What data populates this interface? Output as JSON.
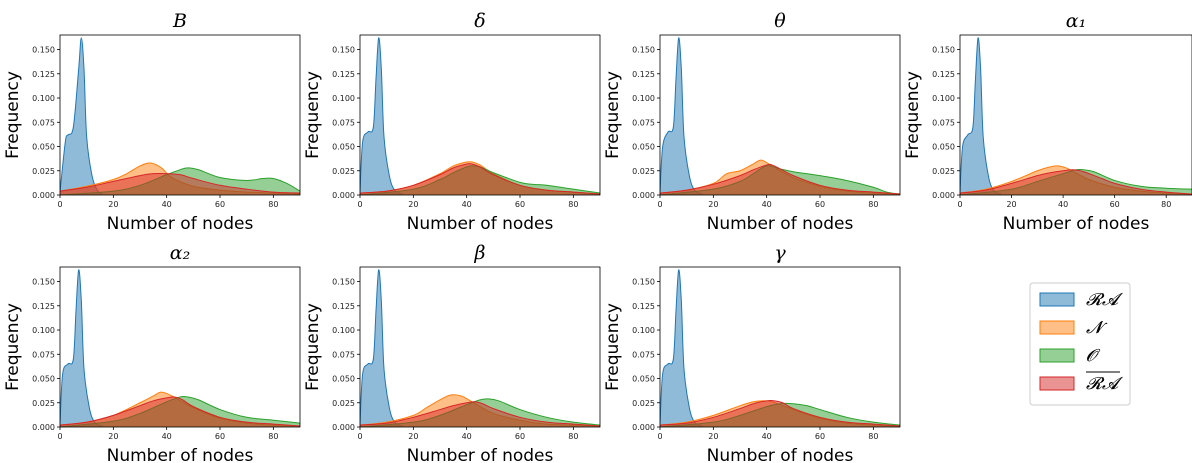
{
  "chart_data": {
    "type": "area",
    "common": {
      "xlabel": "Number of nodes",
      "ylabel": "Frequency",
      "xlim": [
        0,
        90
      ],
      "ylim": [
        0,
        0.165
      ],
      "xticks": [
        0,
        20,
        40,
        60,
        80
      ],
      "yticks": [
        0.0,
        0.025,
        0.05,
        0.075,
        0.1,
        0.125,
        0.15
      ],
      "ytick_labels": [
        "0.000",
        "0.025",
        "0.050",
        "0.075",
        "0.100",
        "0.125",
        "0.150"
      ],
      "grid": false
    },
    "legend": {
      "placement": "right",
      "entries": [
        {
          "label": "𝓡𝓐",
          "color": "#1f77b4"
        },
        {
          "label": "𝓝",
          "color": "#ff7f0e"
        },
        {
          "label": "𝓞",
          "color": "#2ca02c"
        },
        {
          "label": "RA-bar",
          "display": "𝓡𝓐",
          "overline": true,
          "color": "#d62728"
        }
      ]
    },
    "panels": [
      {
        "title": "B",
        "series": [
          {
            "name": "𝓡𝓐",
            "x": [
              0,
              2,
              3,
              5,
              7,
              8,
              9,
              10,
              12,
              14,
              16
            ],
            "y": [
              0.003,
              0.055,
              0.062,
              0.07,
              0.13,
              0.162,
              0.13,
              0.06,
              0.02,
              0.005,
              0.001
            ]
          },
          {
            "name": "𝓝",
            "x": [
              0,
              10,
              20,
              25,
              30,
              34,
              38,
              42,
              50,
              60,
              70,
              80,
              90
            ],
            "y": [
              0.004,
              0.009,
              0.016,
              0.022,
              0.03,
              0.033,
              0.028,
              0.018,
              0.009,
              0.005,
              0.003,
              0.002,
              0.001
            ]
          },
          {
            "name": "𝓞",
            "x": [
              0,
              20,
              30,
              40,
              45,
              48,
              52,
              60,
              70,
              76,
              80,
              85,
              90
            ],
            "y": [
              0.0,
              0.004,
              0.01,
              0.021,
              0.026,
              0.028,
              0.026,
              0.018,
              0.015,
              0.017,
              0.017,
              0.012,
              0.004
            ]
          },
          {
            "name": "RA-bar",
            "x": [
              0,
              10,
              20,
              30,
              35,
              40,
              45,
              50,
              60,
              70,
              80,
              90
            ],
            "y": [
              0.004,
              0.008,
              0.014,
              0.02,
              0.022,
              0.022,
              0.021,
              0.017,
              0.01,
              0.006,
              0.003,
              0.002
            ]
          }
        ]
      },
      {
        "title": "δ",
        "series": [
          {
            "name": "𝓡𝓐",
            "x": [
              0,
              1,
              3,
              5,
              6,
              7,
              8,
              9,
              11,
              13,
              16
            ],
            "y": [
              0.003,
              0.055,
              0.065,
              0.07,
              0.12,
              0.162,
              0.13,
              0.06,
              0.02,
              0.005,
              0.001
            ]
          },
          {
            "name": "𝓝",
            "x": [
              0,
              10,
              20,
              30,
              35,
              40,
              42,
              45,
              50,
              60,
              70,
              80,
              90
            ],
            "y": [
              0.002,
              0.004,
              0.01,
              0.022,
              0.03,
              0.034,
              0.034,
              0.031,
              0.022,
              0.01,
              0.005,
              0.003,
              0.001
            ]
          },
          {
            "name": "𝓞",
            "x": [
              0,
              20,
              30,
              35,
              40,
              42,
              45,
              50,
              60,
              65,
              70,
              80,
              90
            ],
            "y": [
              0.0,
              0.006,
              0.016,
              0.023,
              0.029,
              0.03,
              0.029,
              0.023,
              0.013,
              0.011,
              0.01,
              0.006,
              0.002
            ]
          },
          {
            "name": "RA-bar",
            "x": [
              0,
              10,
              20,
              30,
              35,
              40,
              42,
              45,
              50,
              60,
              70,
              80,
              90
            ],
            "y": [
              0.002,
              0.004,
              0.01,
              0.021,
              0.028,
              0.032,
              0.032,
              0.029,
              0.021,
              0.01,
              0.005,
              0.003,
              0.001
            ]
          }
        ]
      },
      {
        "title": "θ",
        "series": [
          {
            "name": "𝓡𝓐",
            "x": [
              0,
              1,
              3,
              5,
              6,
              7,
              8,
              9,
              11,
              13,
              16
            ],
            "y": [
              0.003,
              0.05,
              0.065,
              0.07,
              0.12,
              0.162,
              0.13,
              0.06,
              0.02,
              0.005,
              0.001
            ]
          },
          {
            "name": "𝓝",
            "x": [
              0,
              10,
              20,
              25,
              30,
              35,
              38,
              42,
              50,
              60,
              70,
              80,
              90
            ],
            "y": [
              0.002,
              0.005,
              0.012,
              0.022,
              0.025,
              0.032,
              0.036,
              0.03,
              0.018,
              0.009,
              0.004,
              0.002,
              0.001
            ]
          },
          {
            "name": "𝓞",
            "x": [
              0,
              20,
              30,
              35,
              40,
              45,
              50,
              60,
              70,
              80,
              85,
              90
            ],
            "y": [
              0.0,
              0.006,
              0.014,
              0.022,
              0.03,
              0.027,
              0.024,
              0.02,
              0.015,
              0.008,
              0.003,
              0.001
            ]
          },
          {
            "name": "RA-bar",
            "x": [
              0,
              10,
              20,
              30,
              35,
              40,
              42,
              45,
              50,
              60,
              70,
              80,
              90
            ],
            "y": [
              0.002,
              0.005,
              0.011,
              0.02,
              0.026,
              0.031,
              0.031,
              0.027,
              0.02,
              0.01,
              0.005,
              0.003,
              0.001
            ]
          }
        ]
      },
      {
        "title": "α₁",
        "series": [
          {
            "name": "𝓡𝓐",
            "x": [
              0,
              1,
              3,
              5,
              6,
              7,
              8,
              9,
              11,
              13,
              16
            ],
            "y": [
              0.003,
              0.05,
              0.062,
              0.07,
              0.12,
              0.162,
              0.13,
              0.06,
              0.02,
              0.005,
              0.001
            ]
          },
          {
            "name": "𝓝",
            "x": [
              0,
              10,
              20,
              30,
              35,
              38,
              42,
              50,
              60,
              70,
              80,
              90
            ],
            "y": [
              0.002,
              0.006,
              0.014,
              0.025,
              0.029,
              0.03,
              0.027,
              0.016,
              0.008,
              0.004,
              0.002,
              0.001
            ]
          },
          {
            "name": "𝓞",
            "x": [
              0,
              20,
              30,
              40,
              45,
              48,
              52,
              60,
              70,
              80,
              90
            ],
            "y": [
              0.0,
              0.006,
              0.014,
              0.022,
              0.026,
              0.026,
              0.024,
              0.015,
              0.009,
              0.007,
              0.006
            ]
          },
          {
            "name": "RA-bar",
            "x": [
              0,
              10,
              20,
              30,
              35,
              40,
              44,
              48,
              55,
              60,
              70,
              80,
              90
            ],
            "y": [
              0.002,
              0.005,
              0.012,
              0.02,
              0.023,
              0.025,
              0.026,
              0.024,
              0.017,
              0.012,
              0.006,
              0.003,
              0.001
            ]
          }
        ]
      },
      {
        "title": "α₂",
        "series": [
          {
            "name": "𝓡𝓐",
            "x": [
              0,
              1,
              3,
              5,
              6,
              7,
              8,
              9,
              11,
              13,
              16
            ],
            "y": [
              0.003,
              0.055,
              0.065,
              0.07,
              0.12,
              0.162,
              0.13,
              0.06,
              0.02,
              0.005,
              0.001
            ]
          },
          {
            "name": "𝓝",
            "x": [
              0,
              10,
              20,
              30,
              35,
              38,
              42,
              50,
              60,
              70,
              80,
              90
            ],
            "y": [
              0.002,
              0.005,
              0.012,
              0.025,
              0.032,
              0.036,
              0.032,
              0.02,
              0.009,
              0.004,
              0.002,
              0.001
            ]
          },
          {
            "name": "𝓞",
            "x": [
              0,
              20,
              30,
              40,
              45,
              48,
              52,
              60,
              70,
              80,
              90
            ],
            "y": [
              0.0,
              0.006,
              0.014,
              0.026,
              0.031,
              0.031,
              0.028,
              0.018,
              0.01,
              0.007,
              0.004
            ]
          },
          {
            "name": "RA-bar",
            "x": [
              0,
              10,
              20,
              30,
              35,
              40,
              43,
              46,
              50,
              60,
              70,
              80,
              90
            ],
            "y": [
              0.002,
              0.005,
              0.012,
              0.022,
              0.027,
              0.03,
              0.031,
              0.028,
              0.021,
              0.01,
              0.005,
              0.003,
              0.001
            ]
          }
        ]
      },
      {
        "title": "β",
        "series": [
          {
            "name": "𝓡𝓐",
            "x": [
              0,
              1,
              3,
              5,
              6,
              7,
              8,
              9,
              11,
              13,
              16
            ],
            "y": [
              0.003,
              0.055,
              0.065,
              0.07,
              0.12,
              0.162,
              0.13,
              0.06,
              0.02,
              0.005,
              0.001
            ]
          },
          {
            "name": "𝓝",
            "x": [
              0,
              10,
              20,
              25,
              30,
              34,
              38,
              42,
              50,
              60,
              70,
              80,
              90
            ],
            "y": [
              0.002,
              0.005,
              0.012,
              0.02,
              0.028,
              0.033,
              0.032,
              0.026,
              0.014,
              0.007,
              0.003,
              0.002,
              0.001
            ]
          },
          {
            "name": "𝓞",
            "x": [
              0,
              20,
              30,
              40,
              45,
              48,
              52,
              60,
              70,
              80,
              90
            ],
            "y": [
              0.0,
              0.005,
              0.012,
              0.023,
              0.028,
              0.029,
              0.027,
              0.018,
              0.01,
              0.005,
              0.002
            ]
          },
          {
            "name": "RA-bar",
            "x": [
              0,
              10,
              20,
              30,
              35,
              40,
              43,
              46,
              50,
              60,
              70,
              80,
              90
            ],
            "y": [
              0.002,
              0.004,
              0.01,
              0.018,
              0.022,
              0.025,
              0.026,
              0.024,
              0.019,
              0.01,
              0.005,
              0.003,
              0.001
            ]
          }
        ]
      },
      {
        "title": "γ",
        "series": [
          {
            "name": "𝓡𝓐",
            "x": [
              0,
              1,
              3,
              5,
              6,
              7,
              8,
              9,
              11,
              13,
              16
            ],
            "y": [
              0.003,
              0.055,
              0.065,
              0.07,
              0.12,
              0.162,
              0.13,
              0.06,
              0.02,
              0.005,
              0.001
            ]
          },
          {
            "name": "𝓝",
            "x": [
              0,
              10,
              20,
              30,
              35,
              38,
              42,
              50,
              60,
              70,
              80,
              90
            ],
            "y": [
              0.002,
              0.005,
              0.012,
              0.022,
              0.026,
              0.027,
              0.026,
              0.018,
              0.009,
              0.004,
              0.002,
              0.001
            ]
          },
          {
            "name": "𝓞",
            "x": [
              0,
              20,
              30,
              40,
              45,
              50,
              55,
              60,
              70,
              80,
              90
            ],
            "y": [
              0.0,
              0.005,
              0.012,
              0.021,
              0.024,
              0.024,
              0.022,
              0.018,
              0.01,
              0.005,
              0.002
            ]
          },
          {
            "name": "RA-bar",
            "x": [
              0,
              10,
              20,
              30,
              35,
              40,
              43,
              46,
              50,
              60,
              70,
              80,
              90
            ],
            "y": [
              0.002,
              0.004,
              0.01,
              0.019,
              0.024,
              0.027,
              0.027,
              0.025,
              0.019,
              0.01,
              0.005,
              0.003,
              0.001
            ]
          }
        ]
      }
    ]
  }
}
